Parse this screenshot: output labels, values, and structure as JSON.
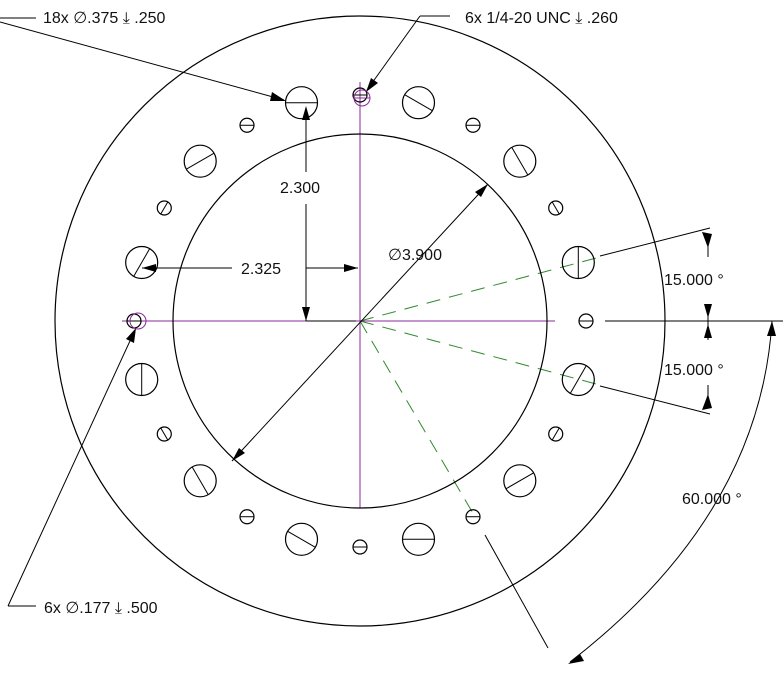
{
  "callouts": {
    "holes_375": "18x ∅.375 ⤓ .250",
    "tapped": "6x 1/4-20 UNC ⤓ .260",
    "holes_177": "6x ∅.177 ⤓ .500"
  },
  "dimensions": {
    "vertical": "2.300",
    "horizontal": "2.325",
    "bore_diameter": "∅3.900",
    "angle_upper": "15.000 °",
    "angle_lower": "15.000 °",
    "angle_span": "60.000 °"
  },
  "colors": {
    "centerline": "#8a2a9a",
    "construction": "#2e8b2e",
    "geometry": "#000000"
  }
}
